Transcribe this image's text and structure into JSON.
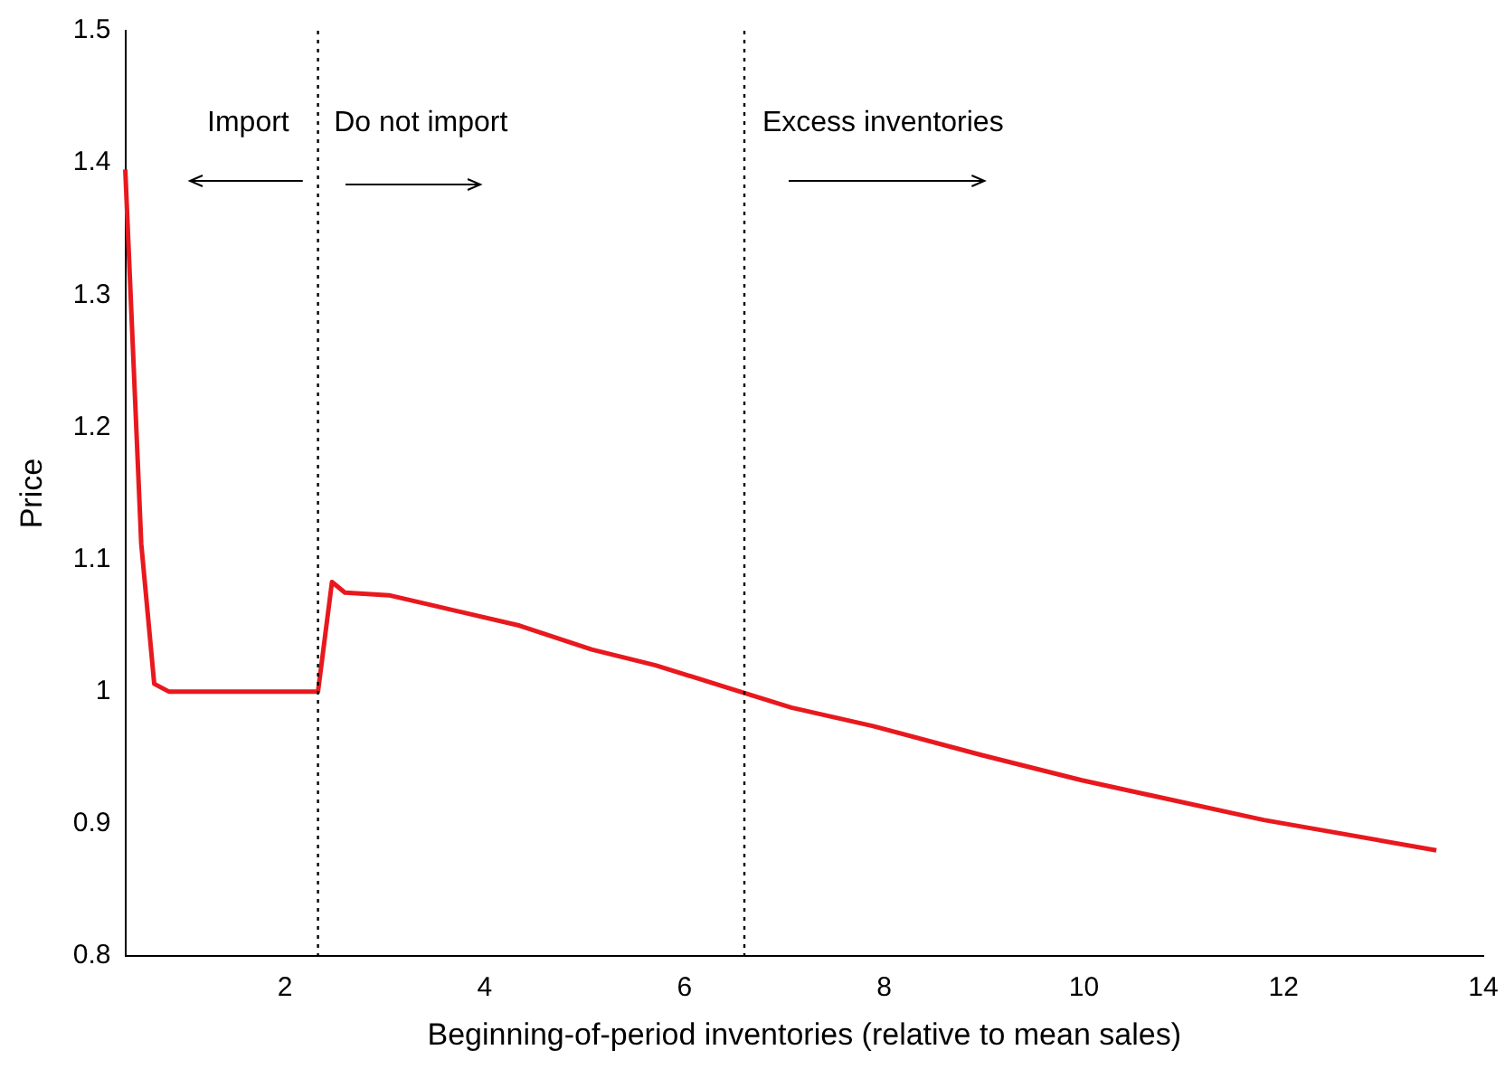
{
  "chart_data": {
    "type": "line",
    "xlabel": "Beginning-of-period inventories (relative to mean sales)",
    "ylabel": "Price",
    "series": [
      {
        "color": "#e8191e",
        "x": [
          0.4,
          0.56,
          0.69,
          0.84,
          2.33,
          2.47,
          2.6,
          3.04,
          3.44,
          4.35,
          5.07,
          5.71,
          6.56,
          7.07,
          7.89,
          8.98,
          9.98,
          11.8,
          13.53
        ],
        "values": [
          1.395,
          1.112,
          1.006,
          1.0,
          1.0,
          1.083,
          1.075,
          1.073,
          1.066,
          1.05,
          1.032,
          1.02,
          1.0,
          0.988,
          0.974,
          0.952,
          0.933,
          0.903,
          0.88
        ]
      }
    ],
    "xlim": [
      0.4,
      14
    ],
    "xticks": [
      2,
      4,
      6,
      8,
      10,
      12,
      14
    ],
    "ylim": [
      0.8,
      1.5
    ],
    "yticks": [
      0.8,
      0.9,
      1,
      1.1,
      1.2,
      1.3,
      1.4,
      1.5
    ],
    "grid": false,
    "legend": false,
    "marker": "none",
    "line_style": "solid",
    "ref_lines": [
      {
        "axis": "x",
        "value": 2.33,
        "color": "#000000",
        "line_style": "dotted"
      },
      {
        "axis": "x",
        "value": 6.6,
        "color": "#000000",
        "line_style": "dotted"
      }
    ],
    "annotations": [
      "Import",
      "Do not import",
      "Excess inventories"
    ]
  }
}
